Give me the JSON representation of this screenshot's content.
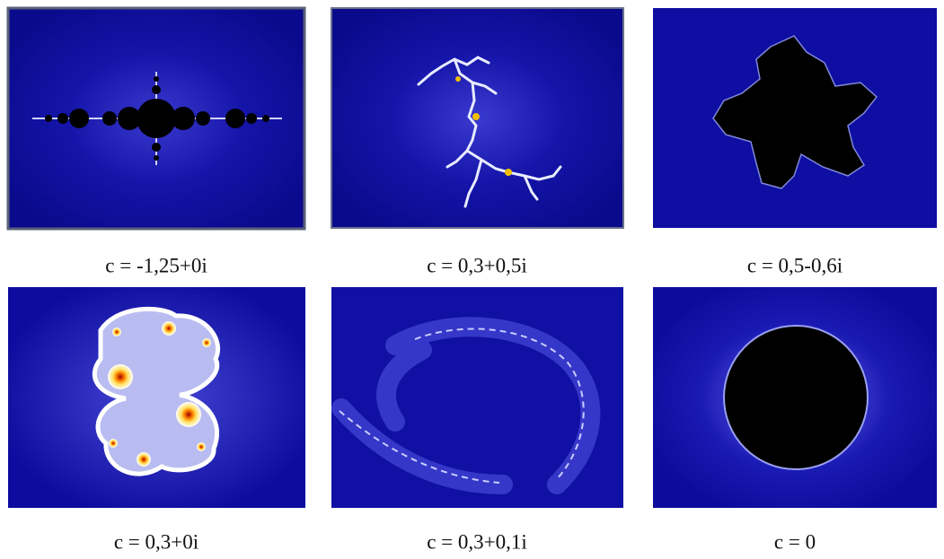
{
  "figure": {
    "panels": [
      {
        "caption": "c = -1,25+0i"
      },
      {
        "caption": "c = 0,3+0,5i"
      },
      {
        "caption": "c = 0,5-0,6i"
      },
      {
        "caption": "c = 0,3+0i"
      },
      {
        "caption": "c = 0,3+0,1i"
      },
      {
        "caption": "c = 0"
      }
    ]
  }
}
